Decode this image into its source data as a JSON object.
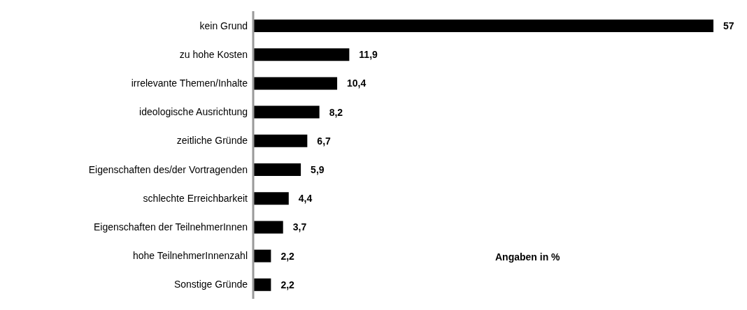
{
  "chart_data": {
    "type": "bar",
    "orientation": "horizontal",
    "categories": [
      "kein Grund",
      "zu hohe Kosten",
      "irrelevante Themen/Inhalte",
      "ideologische Ausrichtung",
      "zeitliche Gründe",
      "Eigenschaften des/der Vortragenden",
      "schlechte Erreichbarkeit",
      "Eigenschaften der TeilnehmerInnen",
      "hohe TeilnehmerInnenzahl",
      "Sonstige Gründe"
    ],
    "values": [
      57,
      11.9,
      10.4,
      8.2,
      6.7,
      5.9,
      4.4,
      3.7,
      2.2,
      2.2
    ],
    "value_labels": [
      "57",
      "11,9",
      "10,4",
      "8,2",
      "6,7",
      "5,9",
      "4,4",
      "3,7",
      "2,2",
      "2,2"
    ],
    "color": "#000000",
    "annotations": [
      "Angaben in %"
    ]
  }
}
